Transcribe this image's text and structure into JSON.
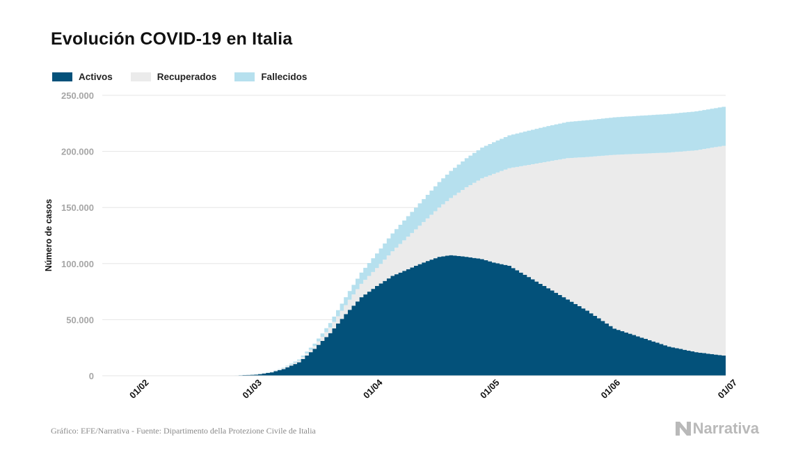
{
  "title": "Evolución COVID-19 en Italia",
  "legend": [
    {
      "label": "Activos",
      "color": "#03517a"
    },
    {
      "label": "Recuperados",
      "color": "#ebebeb"
    },
    {
      "label": "Fallecidos",
      "color": "#b6e0ee"
    }
  ],
  "chart_data": {
    "type": "area",
    "stacked": true,
    "step": true,
    "ylabel": "Número de casos",
    "ylim": [
      0,
      250000
    ],
    "yticks": [
      0,
      50000,
      100000,
      150000,
      200000,
      250000
    ],
    "ytick_labels": [
      "0",
      "50.000",
      "100.000",
      "150.000",
      "200.000",
      "250.000"
    ],
    "xlim": [
      "2020-01-22",
      "2020-06-30"
    ],
    "xticks": [
      "2020-02-01",
      "2020-03-01",
      "2020-04-01",
      "2020-05-01",
      "2020-06-01",
      "2020-07-01"
    ],
    "xtick_labels": [
      "01/02",
      "01/03",
      "01/04",
      "01/05",
      "01/06",
      "01/07"
    ],
    "grid": "horizontal",
    "x": [
      "2020-02-24",
      "2020-03-01",
      "2020-03-05",
      "2020-03-08",
      "2020-03-12",
      "2020-03-16",
      "2020-03-20",
      "2020-03-24",
      "2020-03-28",
      "2020-04-01",
      "2020-04-05",
      "2020-04-09",
      "2020-04-13",
      "2020-04-17",
      "2020-04-20",
      "2020-04-24",
      "2020-04-28",
      "2020-05-01",
      "2020-05-05",
      "2020-05-10",
      "2020-05-15",
      "2020-05-20",
      "2020-05-25",
      "2020-06-01",
      "2020-06-08",
      "2020-06-15",
      "2020-06-22",
      "2020-06-29"
    ],
    "series": [
      {
        "name": "Activos",
        "color": "#03517a",
        "values": [
          200,
          1000,
          3000,
          6000,
          12000,
          24000,
          38000,
          55000,
          70000,
          80000,
          89000,
          95000,
          101000,
          106000,
          107500,
          106000,
          104000,
          101000,
          98000,
          88000,
          78000,
          68000,
          58000,
          42000,
          34000,
          26000,
          21000,
          18000
        ]
      },
      {
        "name": "Recuperados",
        "color": "#ebebeb",
        "values": [
          0,
          100,
          400,
          800,
          1500,
          2500,
          5000,
          8000,
          12000,
          16000,
          22000,
          29000,
          36000,
          44000,
          51000,
          62000,
          72000,
          79000,
          87000,
          100000,
          113000,
          126000,
          137000,
          155000,
          164000,
          173000,
          180000,
          187000
        ]
      },
      {
        "name": "Fallecidos",
        "color": "#b6e0ee",
        "values": [
          0,
          50,
          150,
          400,
          1000,
          2100,
          4000,
          7000,
          10000,
          13000,
          15900,
          18300,
          20500,
          22700,
          24100,
          25900,
          27400,
          28200,
          29300,
          30500,
          31600,
          32300,
          32800,
          33400,
          33900,
          34400,
          34700,
          34800
        ]
      }
    ]
  },
  "footer": "Gráfico: EFE/Narrativa - Fuente: Dipartimento della Protezione Civile de Italia",
  "brand": "Narrativa"
}
